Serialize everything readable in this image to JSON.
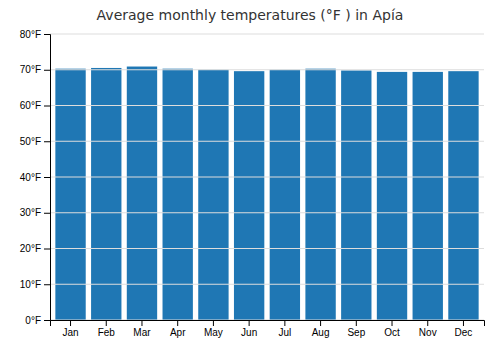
{
  "chart_data": {
    "type": "bar",
    "title": "Average monthly temperatures (°F ) in Apía",
    "categories": [
      "Jan",
      "Feb",
      "Mar",
      "Apr",
      "May",
      "Jun",
      "Jul",
      "Aug",
      "Sep",
      "Oct",
      "Nov",
      "Dec"
    ],
    "values": [
      70.3,
      70.5,
      70.9,
      70.3,
      70.0,
      69.6,
      70.0,
      70.3,
      69.8,
      69.4,
      69.4,
      69.6
    ],
    "ylim": [
      0,
      80
    ],
    "yticks": [
      {
        "value": 0,
        "label": "0°F"
      },
      {
        "value": 10,
        "label": "10°F"
      },
      {
        "value": 20,
        "label": "20°F"
      },
      {
        "value": 30,
        "label": "30°F"
      },
      {
        "value": 40,
        "label": "40°F"
      },
      {
        "value": 50,
        "label": "50°F"
      },
      {
        "value": 60,
        "label": "60°F"
      },
      {
        "value": 70,
        "label": "70°F"
      },
      {
        "value": 80,
        "label": "80°F"
      }
    ],
    "grid": true
  }
}
